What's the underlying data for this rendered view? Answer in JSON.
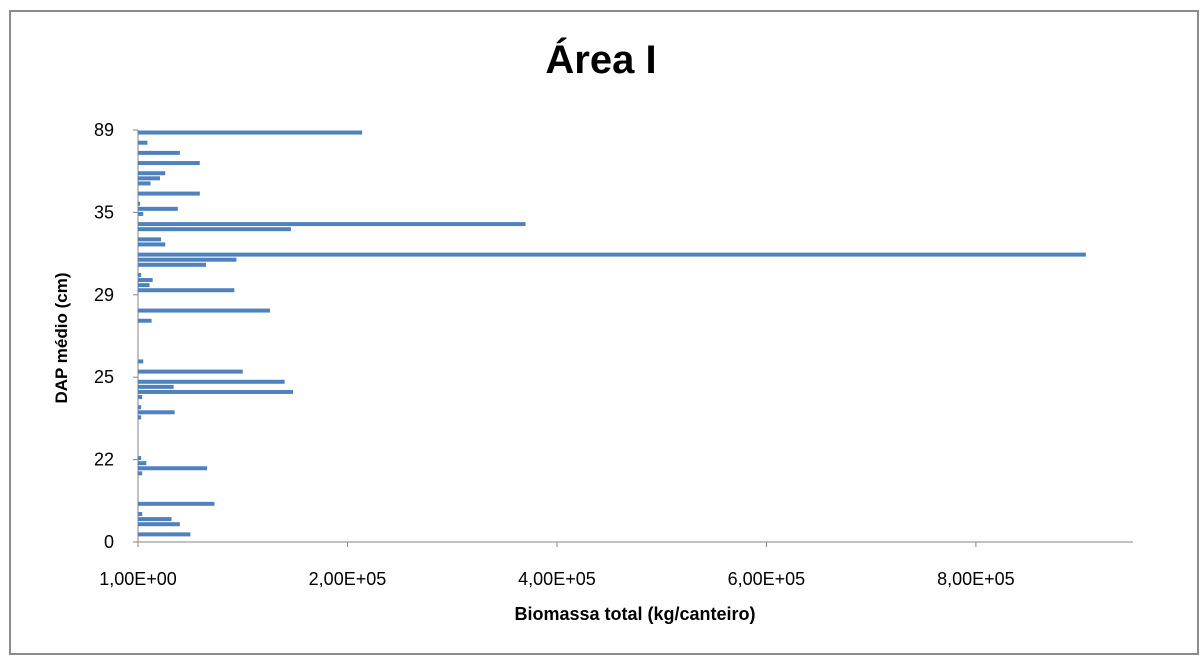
{
  "chart_data": {
    "type": "bar",
    "orientation": "horizontal",
    "title": "Área I",
    "xlabel": "Biomassa total (kg/canteiro)",
    "ylabel": "DAP médio (cm)",
    "xlim": [
      1,
      950000
    ],
    "x_ticks": [
      {
        "value": 1,
        "label": "1,00E+00"
      },
      {
        "value": 200000,
        "label": "2,00E+05"
      },
      {
        "value": 400000,
        "label": "4,00E+05"
      },
      {
        "value": 600000,
        "label": "6,00E+05"
      },
      {
        "value": 800000,
        "label": "8,00E+05"
      }
    ],
    "y_tick_labels": [
      "0",
      "22",
      "25",
      "29",
      "35",
      "89"
    ],
    "grid": false,
    "legend": "none",
    "bar_color": "#4f81bd",
    "series": [
      {
        "values": [
          0,
          50000,
          0,
          40000,
          32000,
          4000,
          0,
          73000,
          0,
          0,
          0,
          0,
          0,
          4000,
          66000,
          8000,
          3000,
          0,
          0,
          0,
          0,
          0,
          0,
          0,
          3000,
          35000,
          3000,
          0,
          4000,
          148000,
          34000,
          140000,
          0,
          100000,
          0,
          5000,
          0,
          0,
          0,
          0,
          0,
          0,
          0,
          13000,
          0,
          126000,
          0,
          0,
          0,
          92000,
          11000,
          14000,
          3000,
          0,
          65000,
          94000,
          905000,
          0,
          26000,
          22000,
          0,
          146000,
          370000,
          0,
          5000,
          38000,
          2000,
          0,
          59000,
          0,
          12000,
          21000,
          26000,
          0,
          59000,
          0,
          40000,
          0,
          9000,
          0,
          214000
        ]
      }
    ]
  }
}
